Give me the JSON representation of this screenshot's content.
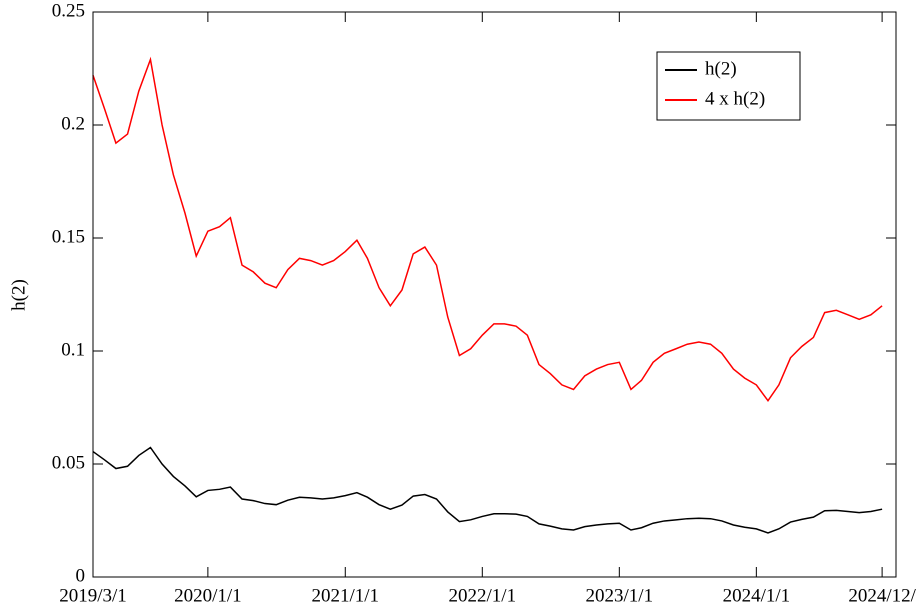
{
  "chart_data": {
    "type": "line",
    "ylabel": "h(2)",
    "x": [
      "2019/3/1",
      "2019/4/1",
      "2019/5/1",
      "2019/6/1",
      "2019/7/1",
      "2019/8/1",
      "2019/9/1",
      "2019/10/1",
      "2019/11/1",
      "2019/12/1",
      "2020/1/1",
      "2020/2/1",
      "2020/3/1",
      "2020/4/1",
      "2020/5/1",
      "2020/6/1",
      "2020/7/1",
      "2020/8/1",
      "2020/9/1",
      "2020/10/1",
      "2020/11/1",
      "2020/12/1",
      "2021/1/1",
      "2021/2/1",
      "2021/3/1",
      "2021/4/1",
      "2021/5/1",
      "2021/6/1",
      "2021/7/1",
      "2021/8/1",
      "2021/9/1",
      "2021/10/1",
      "2021/11/1",
      "2021/12/1",
      "2022/1/1",
      "2022/2/1",
      "2022/3/1",
      "2022/4/1",
      "2022/5/1",
      "2022/6/1",
      "2022/7/1",
      "2022/8/1",
      "2022/9/1",
      "2022/10/1",
      "2022/11/1",
      "2022/12/1",
      "2023/1/1",
      "2023/2/1",
      "2023/3/1",
      "2023/4/1",
      "2023/5/1",
      "2023/6/1",
      "2023/7/1",
      "2023/8/1",
      "2023/9/1",
      "2023/10/1",
      "2023/11/1",
      "2023/12/1",
      "2024/1/1",
      "2024/2/1",
      "2024/3/1",
      "2024/4/1",
      "2024/5/1",
      "2024/6/1",
      "2024/7/1",
      "2024/8/1",
      "2024/9/1",
      "2024/10/1",
      "2024/11/1",
      "2024/12/1"
    ],
    "series": [
      {
        "name": "h(2)",
        "color": "#000000",
        "values": [
          0.0555,
          0.0518,
          0.048,
          0.049,
          0.0538,
          0.0573,
          0.05,
          0.0445,
          0.0403,
          0.0355,
          0.0383,
          0.0388,
          0.0398,
          0.0345,
          0.0338,
          0.0325,
          0.032,
          0.034,
          0.0353,
          0.035,
          0.0345,
          0.035,
          0.036,
          0.0373,
          0.0353,
          0.032,
          0.03,
          0.0318,
          0.0358,
          0.0365,
          0.0345,
          0.0288,
          0.0245,
          0.0253,
          0.0268,
          0.028,
          0.028,
          0.0278,
          0.0268,
          0.0235,
          0.0225,
          0.0213,
          0.0208,
          0.0223,
          0.023,
          0.0235,
          0.0238,
          0.0208,
          0.0218,
          0.0238,
          0.0248,
          0.0253,
          0.0258,
          0.026,
          0.0258,
          0.0248,
          0.023,
          0.022,
          0.0213,
          0.0195,
          0.0213,
          0.0243,
          0.0255,
          0.0265,
          0.0293,
          0.0295,
          0.029,
          0.0285,
          0.029,
          0.03
        ]
      },
      {
        "name": "4 x h(2)",
        "color": "#ff0000",
        "values": [
          0.222,
          0.207,
          0.192,
          0.196,
          0.215,
          0.229,
          0.2,
          0.178,
          0.161,
          0.142,
          0.153,
          0.155,
          0.159,
          0.138,
          0.135,
          0.13,
          0.128,
          0.136,
          0.141,
          0.14,
          0.138,
          0.14,
          0.144,
          0.149,
          0.141,
          0.128,
          0.12,
          0.127,
          0.143,
          0.146,
          0.138,
          0.115,
          0.098,
          0.101,
          0.107,
          0.112,
          0.112,
          0.111,
          0.107,
          0.094,
          0.09,
          0.085,
          0.083,
          0.089,
          0.092,
          0.094,
          0.095,
          0.083,
          0.087,
          0.095,
          0.099,
          0.101,
          0.103,
          0.104,
          0.103,
          0.099,
          0.092,
          0.088,
          0.085,
          0.078,
          0.085,
          0.097,
          0.102,
          0.106,
          0.117,
          0.118,
          0.116,
          0.114,
          0.116,
          0.12
        ]
      }
    ],
    "xlim": [
      "2019/3/1",
      "2025/1/7"
    ],
    "xticks": [
      "2019/3/1",
      "2020/1/1",
      "2021/1/1",
      "2022/1/1",
      "2023/1/1",
      "2024/1/1",
      {
        "value": "2024/12/1",
        "label": "2024/12/"
      }
    ],
    "ylim": [
      0,
      0.25
    ],
    "yticks": [
      0,
      0.05,
      0.1,
      0.15,
      0.2,
      0.25
    ],
    "legend": "upper right"
  }
}
